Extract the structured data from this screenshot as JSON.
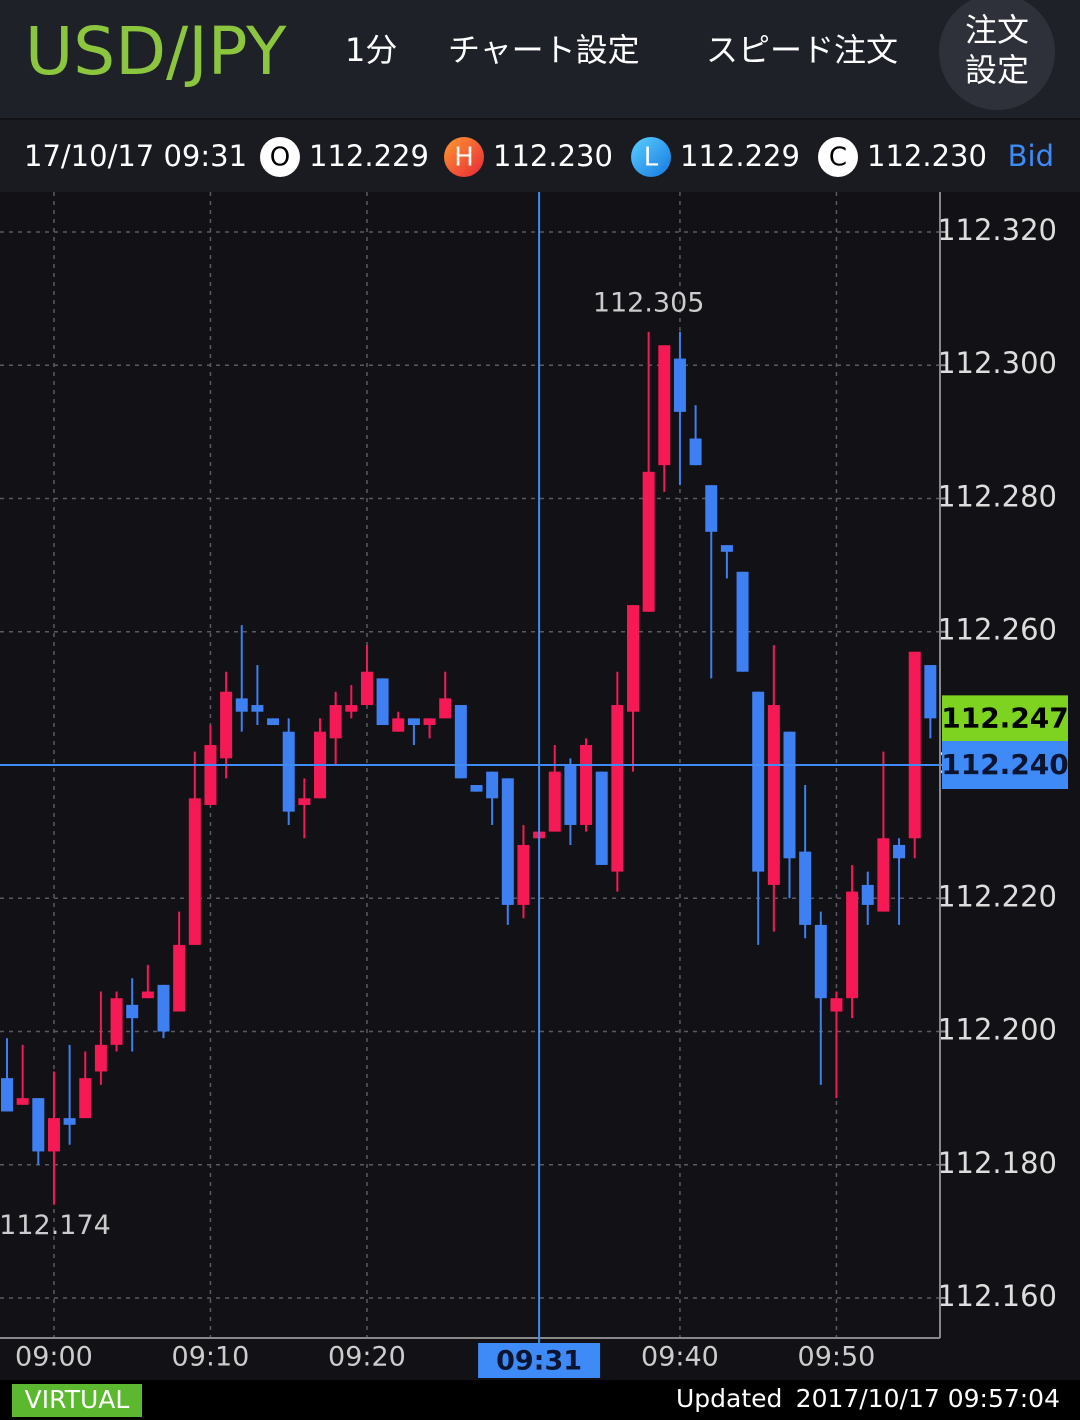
{
  "header": {
    "symbol": "USD/JPY",
    "interval": "1分",
    "chart_settings": "チャート設定",
    "speed_order": "スピード注文",
    "order_settings": [
      "注文",
      "設定"
    ]
  },
  "info_bar": {
    "time": "17/10/17 09:31",
    "items": [
      {
        "letter": "O",
        "value": "112.229"
      },
      {
        "letter": "H",
        "value": "112.230"
      },
      {
        "letter": "L",
        "value": "112.229"
      },
      {
        "letter": "C",
        "value": "112.230"
      }
    ],
    "side": "Bid"
  },
  "chart_data": {
    "type": "candlestick",
    "up_color": "#f51a55",
    "down_color": "#3e7ff2",
    "grid": true,
    "x": [
      "08:57",
      "08:58",
      "08:59",
      "09:00",
      "09:01",
      "09:02",
      "09:03",
      "09:04",
      "09:05",
      "09:06",
      "09:07",
      "09:08",
      "09:09",
      "09:10",
      "09:11",
      "09:12",
      "09:13",
      "09:14",
      "09:15",
      "09:16",
      "09:17",
      "09:18",
      "09:19",
      "09:20",
      "09:21",
      "09:22",
      "09:23",
      "09:24",
      "09:25",
      "09:26",
      "09:27",
      "09:28",
      "09:29",
      "09:30",
      "09:31",
      "09:32",
      "09:33",
      "09:34",
      "09:35",
      "09:36",
      "09:37",
      "09:38",
      "09:39",
      "09:40",
      "09:41",
      "09:42",
      "09:43",
      "09:44",
      "09:45",
      "09:46",
      "09:47",
      "09:48",
      "09:49",
      "09:50",
      "09:51",
      "09:52",
      "09:53",
      "09:54",
      "09:55",
      "09:56"
    ],
    "open": [
      112.193,
      112.189,
      112.19,
      112.182,
      112.187,
      112.187,
      112.194,
      112.198,
      112.204,
      112.205,
      112.207,
      112.203,
      112.213,
      112.234,
      112.241,
      112.25,
      112.249,
      112.247,
      112.245,
      112.234,
      112.235,
      112.244,
      112.248,
      112.249,
      112.253,
      112.245,
      112.247,
      112.246,
      112.247,
      112.249,
      112.237,
      112.239,
      112.238,
      112.219,
      112.229,
      112.23,
      112.24,
      112.231,
      112.239,
      112.224,
      112.248,
      112.263,
      112.285,
      112.301,
      112.289,
      112.282,
      112.273,
      112.269,
      112.251,
      112.222,
      112.245,
      112.227,
      112.216,
      112.203,
      112.205,
      112.222,
      112.218,
      112.228,
      112.229,
      112.255
    ],
    "high": [
      112.199,
      112.198,
      112.19,
      112.194,
      112.198,
      112.197,
      112.206,
      112.206,
      112.208,
      112.21,
      112.207,
      112.218,
      112.242,
      112.246,
      112.254,
      112.261,
      112.255,
      112.247,
      112.247,
      112.238,
      112.247,
      112.251,
      112.252,
      112.258,
      112.253,
      112.248,
      112.247,
      112.247,
      112.254,
      112.249,
      112.237,
      112.239,
      112.238,
      112.231,
      112.23,
      112.243,
      112.241,
      112.244,
      112.239,
      112.254,
      112.264,
      112.305,
      112.303,
      112.305,
      112.294,
      112.282,
      112.273,
      112.269,
      112.251,
      112.258,
      112.245,
      112.237,
      112.218,
      112.206,
      112.225,
      112.224,
      112.242,
      112.229,
      112.257,
      112.255
    ],
    "low": [
      112.188,
      112.189,
      112.18,
      112.174,
      112.183,
      112.187,
      112.192,
      112.197,
      112.197,
      112.205,
      112.199,
      112.203,
      112.213,
      112.234,
      112.238,
      112.245,
      112.246,
      112.246,
      112.231,
      112.229,
      112.235,
      112.24,
      112.247,
      112.249,
      112.246,
      112.245,
      112.243,
      112.244,
      112.247,
      112.238,
      112.236,
      112.231,
      112.216,
      112.217,
      112.229,
      112.23,
      112.228,
      112.23,
      112.225,
      112.221,
      112.239,
      112.263,
      112.281,
      112.282,
      112.285,
      112.253,
      112.268,
      112.254,
      112.213,
      112.215,
      112.22,
      112.214,
      112.192,
      112.19,
      112.202,
      112.216,
      112.218,
      112.216,
      112.226,
      112.244
    ],
    "close": [
      112.188,
      112.19,
      112.182,
      112.187,
      112.186,
      112.193,
      112.198,
      112.205,
      112.202,
      112.206,
      112.2,
      112.213,
      112.235,
      112.243,
      112.251,
      112.248,
      112.248,
      112.246,
      112.233,
      112.235,
      112.245,
      112.249,
      112.249,
      112.254,
      112.246,
      112.247,
      112.246,
      112.247,
      112.25,
      112.238,
      112.236,
      112.235,
      112.219,
      112.228,
      112.23,
      112.239,
      112.231,
      112.243,
      112.225,
      112.249,
      112.264,
      112.284,
      112.303,
      112.293,
      112.285,
      112.275,
      112.272,
      112.254,
      112.224,
      112.249,
      112.226,
      112.216,
      112.205,
      112.205,
      112.221,
      112.219,
      112.229,
      112.226,
      112.257,
      112.247
    ],
    "ylim": [
      112.154,
      112.326
    ],
    "yticks": [
      {
        "value": 112.16,
        "label": "112.160"
      },
      {
        "value": 112.18,
        "label": "112.180"
      },
      {
        "value": 112.2,
        "label": "112.200"
      },
      {
        "value": 112.22,
        "label": "112.220"
      },
      {
        "value": 112.24,
        "label": "112.240"
      },
      {
        "value": 112.26,
        "label": "112.260"
      },
      {
        "value": 112.28,
        "label": "112.280"
      },
      {
        "value": 112.3,
        "label": "112.300"
      },
      {
        "value": 112.32,
        "label": "112.320"
      }
    ],
    "xticks": [
      "09:00",
      "09:10",
      "09:20",
      "09:40",
      "09:50"
    ],
    "annotations": [
      {
        "x": "09:38",
        "value": 112.305,
        "label": "112.305"
      },
      {
        "x": "09:00",
        "value": 112.174,
        "label": "112.174"
      }
    ],
    "last_price": {
      "value": 112.247,
      "label": "112.247",
      "color": "#7ed321"
    },
    "crosshair": {
      "x": "09:31",
      "y": {
        "value": 112.24,
        "label": "112.240"
      },
      "color": "#3e8af7"
    }
  },
  "footer": {
    "mode": "VIRTUAL",
    "updated": "Updated",
    "timestamp": "2017/10/17 09:57:04"
  }
}
